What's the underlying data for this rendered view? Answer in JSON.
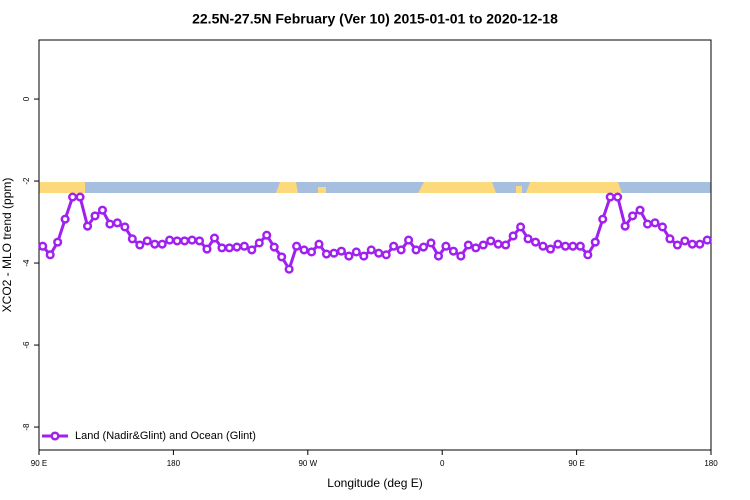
{
  "chart_data": {
    "type": "line",
    "title": "22.5N-27.5N February (Ver 10)   2015-01-01 to 2020-12-18",
    "x_label": "Longitude (deg E)",
    "y_label": "XCO2 - MLO trend (ppm)",
    "x": [
      92.5,
      97.5,
      102.5,
      107.5,
      112.5,
      117.5,
      122.5,
      127.5,
      132.5,
      137.5,
      142.5,
      147.5,
      152.5,
      157.5,
      162.5,
      167.5,
      172.5,
      177.5,
      182.5,
      187.5,
      192.5,
      197.5,
      202.5,
      207.5,
      212.5,
      217.5,
      222.5,
      227.5,
      232.5,
      237.5,
      242.5,
      247.5,
      252.5,
      257.5,
      262.5,
      267.5,
      272.5,
      277.5,
      282.5,
      287.5,
      292.5,
      297.5,
      302.5,
      307.5,
      312.5,
      317.5,
      322.5,
      327.5,
      332.5,
      337.5,
      342.5,
      347.5,
      352.5,
      357.5,
      362.5,
      367.5,
      372.5,
      377.5,
      382.5,
      387.5,
      392.5,
      397.5,
      402.5,
      407.5,
      412.5,
      417.5,
      422.5,
      427.5,
      432.5,
      437.5,
      442.5,
      447.5,
      452.5,
      457.5,
      462.5,
      467.5,
      472.5,
      477.5,
      482.5,
      487.5,
      492.5,
      497.5,
      502.5,
      507.5,
      512.5,
      517.5,
      522.5,
      527.5,
      532.5,
      537.5
    ],
    "series": [
      {
        "name": "Land (Nadir&Glint) and Ocean (Glint)",
        "color": "#a020f0",
        "values": [
          -3.59,
          -3.8,
          -3.49,
          -2.93,
          -2.39,
          -2.39,
          -3.1,
          -2.85,
          -2.71,
          -3.05,
          -3.02,
          -3.12,
          -3.41,
          -3.56,
          -3.46,
          -3.54,
          -3.54,
          -3.44,
          -3.46,
          -3.46,
          -3.44,
          -3.46,
          -3.66,
          -3.39,
          -3.63,
          -3.63,
          -3.61,
          -3.59,
          -3.68,
          -3.51,
          -3.32,
          -3.61,
          -3.85,
          -4.15,
          -3.59,
          -3.68,
          -3.73,
          -3.54,
          -3.78,
          -3.76,
          -3.71,
          -3.83,
          -3.73,
          -3.83,
          -3.68,
          -3.76,
          -3.8,
          -3.59,
          -3.68,
          -3.44,
          -3.68,
          -3.61,
          -3.51,
          -3.83,
          -3.59,
          -3.71,
          -3.83,
          -3.56,
          -3.63,
          -3.56,
          -3.46,
          -3.54,
          -3.56,
          -3.34,
          -3.12,
          -3.41,
          -3.49,
          -3.59,
          -3.66,
          -3.54,
          -3.59,
          -3.59,
          -3.59,
          -3.8,
          -3.49,
          -2.93,
          -2.39,
          -2.39,
          -3.1,
          -2.85,
          -2.71,
          -3.05,
          -3.02,
          -3.12,
          -3.41,
          -3.56,
          -3.46,
          -3.54,
          -3.54,
          -3.44
        ]
      }
    ],
    "xlim": [
      90,
      540
    ],
    "xticks": [
      {
        "value": 90,
        "label": "90 E"
      },
      180,
      {
        "value": 270,
        "label": "90 W"
      },
      {
        "value": 360,
        "label": "0"
      },
      {
        "value": 450,
        "label": "90 E"
      },
      {
        "value": 540,
        "label": "180"
      }
    ],
    "ylim": [
      -8.56,
      1.44
    ],
    "yticks": [
      0,
      -2,
      -4,
      -6,
      -8
    ],
    "legend": "bottomleft"
  }
}
